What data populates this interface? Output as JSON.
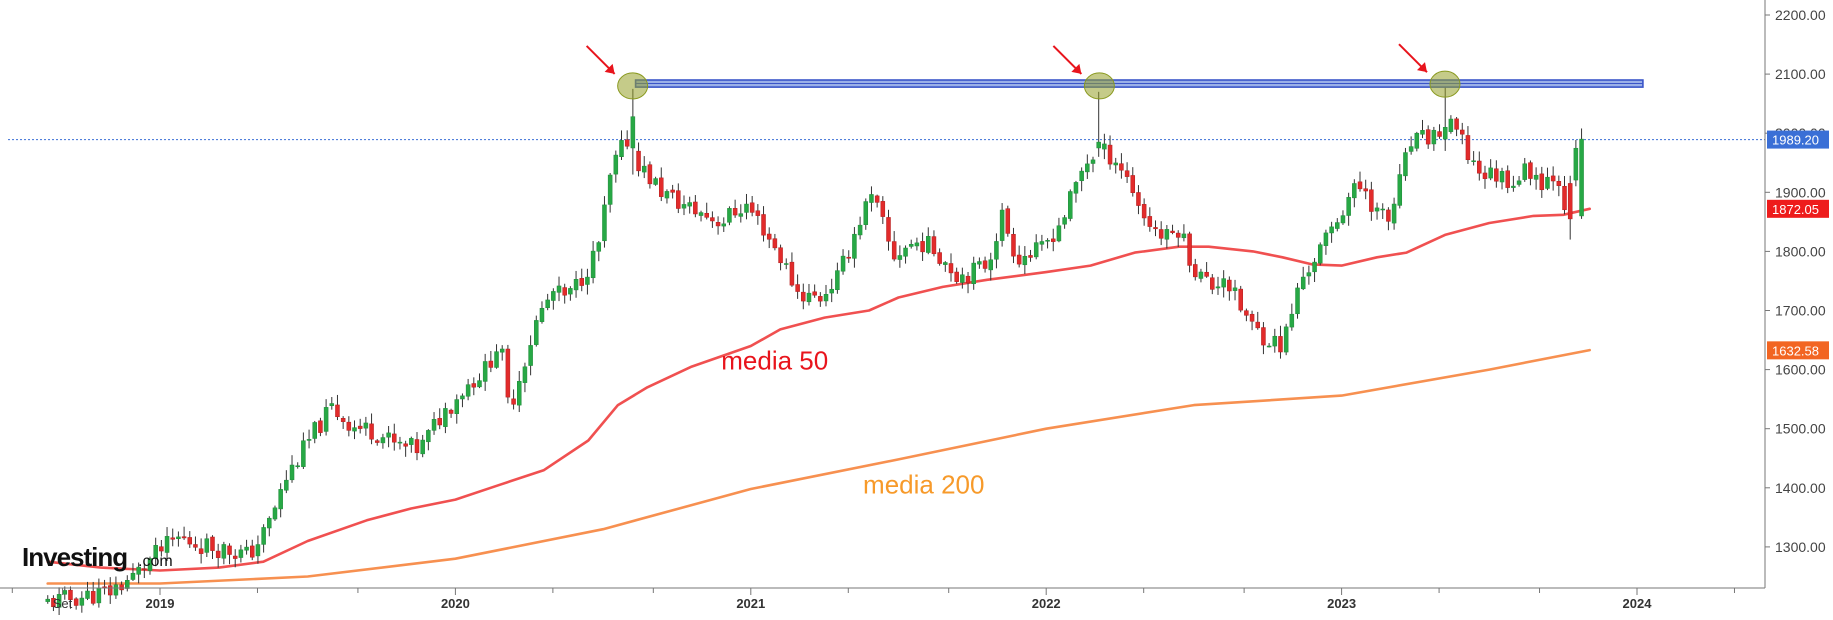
{
  "chart_data": {
    "type": "candlestick",
    "title": "",
    "xlabel": "",
    "ylabel": "",
    "ylim": [
      1235,
      2245
    ],
    "xlim": [
      2018.62,
      2024.52
    ],
    "y_ticks": [
      1300,
      1400,
      1500,
      1600,
      1700,
      1800,
      1900,
      2000,
      2100,
      2200
    ],
    "y_tick_labels": [
      "1300.00",
      "1400.00",
      "1500.00",
      "1600.00",
      "1700.00",
      "1800.00",
      "1900.00",
      "2000.00",
      "2100.00",
      "2200.00"
    ],
    "x_ticks": [
      {
        "label": "Set",
        "x": 2018.67,
        "bold": false
      },
      {
        "label": "2019",
        "x": 2019.0,
        "bold": true
      },
      {
        "label": "2020",
        "x": 2020.0,
        "bold": true
      },
      {
        "label": "2021",
        "x": 2021.0,
        "bold": true
      },
      {
        "label": "2022",
        "x": 2022.0,
        "bold": true
      },
      {
        "label": "2023",
        "x": 2023.0,
        "bold": true
      },
      {
        "label": "2024",
        "x": 2024.0,
        "bold": true
      }
    ],
    "minor_x_ticks": [
      2018.5,
      2018.67,
      2018.83,
      2019.33,
      2019.67,
      2020.33,
      2020.67,
      2021.33,
      2021.67,
      2022.33,
      2022.67,
      2023.33,
      2023.67,
      2024.33
    ],
    "price_anchors": [
      [
        2018.62,
        1205
      ],
      [
        2018.75,
        1215
      ],
      [
        2018.85,
        1225
      ],
      [
        2018.93,
        1250
      ],
      [
        2019.0,
        1285
      ],
      [
        2019.08,
        1315
      ],
      [
        2019.15,
        1305
      ],
      [
        2019.25,
        1295
      ],
      [
        2019.32,
        1285
      ],
      [
        2019.38,
        1330
      ],
      [
        2019.45,
        1420
      ],
      [
        2019.55,
        1500
      ],
      [
        2019.6,
        1535
      ],
      [
        2019.67,
        1505
      ],
      [
        2019.75,
        1495
      ],
      [
        2019.82,
        1470
      ],
      [
        2019.9,
        1465
      ],
      [
        2019.96,
        1515
      ],
      [
        2020.05,
        1570
      ],
      [
        2020.12,
        1600
      ],
      [
        2020.17,
        1650
      ],
      [
        2020.2,
        1530
      ],
      [
        2020.25,
        1610
      ],
      [
        2020.3,
        1690
      ],
      [
        2020.35,
        1730
      ],
      [
        2020.4,
        1720
      ],
      [
        2020.45,
        1760
      ],
      [
        2020.5,
        1800
      ],
      [
        2020.55,
        1940
      ],
      [
        2020.6,
        1990
      ],
      [
        2020.65,
        1940
      ],
      [
        2020.72,
        1900
      ],
      [
        2020.8,
        1875
      ],
      [
        2020.85,
        1865
      ],
      [
        2020.92,
        1850
      ],
      [
        2021.0,
        1880
      ],
      [
        2021.05,
        1850
      ],
      [
        2021.12,
        1790
      ],
      [
        2021.18,
        1730
      ],
      [
        2021.25,
        1720
      ],
      [
        2021.32,
        1760
      ],
      [
        2021.37,
        1830
      ],
      [
        2021.42,
        1890
      ],
      [
        2021.45,
        1870
      ],
      [
        2021.5,
        1790
      ],
      [
        2021.55,
        1810
      ],
      [
        2021.6,
        1815
      ],
      [
        2021.65,
        1800
      ],
      [
        2021.72,
        1760
      ],
      [
        2021.77,
        1765
      ],
      [
        2021.82,
        1780
      ],
      [
        2021.87,
        1860
      ],
      [
        2021.92,
        1790
      ],
      [
        2022.0,
        1800
      ],
      [
        2022.08,
        1860
      ],
      [
        2022.15,
        1950
      ],
      [
        2022.2,
        1970
      ],
      [
        2022.25,
        1960
      ],
      [
        2022.3,
        1920
      ],
      [
        2022.35,
        1860
      ],
      [
        2022.42,
        1820
      ],
      [
        2022.47,
        1840
      ],
      [
        2022.52,
        1770
      ],
      [
        2022.58,
        1740
      ],
      [
        2022.62,
        1760
      ],
      [
        2022.67,
        1710
      ],
      [
        2022.72,
        1670
      ],
      [
        2022.78,
        1650
      ],
      [
        2022.82,
        1640
      ],
      [
        2022.88,
        1750
      ],
      [
        2022.93,
        1790
      ],
      [
        2022.97,
        1820
      ],
      [
        2023.05,
        1900
      ],
      [
        2023.1,
        1910
      ],
      [
        2023.13,
        1870
      ],
      [
        2023.18,
        1850
      ],
      [
        2023.25,
        1980
      ],
      [
        2023.3,
        1990
      ],
      [
        2023.35,
        2000
      ],
      [
        2023.4,
        2010
      ],
      [
        2023.45,
        1960
      ],
      [
        2023.5,
        1930
      ],
      [
        2023.55,
        1930
      ],
      [
        2023.6,
        1920
      ],
      [
        2023.65,
        1940
      ],
      [
        2023.7,
        1920
      ],
      [
        2023.75,
        1935
      ],
      [
        2023.78,
        1870
      ],
      [
        2023.8,
        1930
      ],
      [
        2023.82,
        1985
      ]
    ],
    "special_candles": [
      {
        "x": 2020.6,
        "open": 1975,
        "high": 2075,
        "low": 1930,
        "close": 2028
      },
      {
        "x": 2022.18,
        "open": 1975,
        "high": 2070,
        "low": 1960,
        "close": 1985
      },
      {
        "x": 2023.35,
        "open": 1990,
        "high": 2080,
        "low": 1970,
        "close": 2010
      },
      {
        "x": 2023.78,
        "open": 1915,
        "high": 1928,
        "low": 1820,
        "close": 1855
      },
      {
        "x": 2023.82,
        "open": 1860,
        "high": 2008,
        "low": 1855,
        "close": 1990
      }
    ],
    "last_price": 1989.2,
    "series": [
      {
        "name": "media 50",
        "color": "#f05050",
        "points": [
          [
            2018.62,
            1275
          ],
          [
            2018.8,
            1265
          ],
          [
            2019.0,
            1260
          ],
          [
            2019.2,
            1265
          ],
          [
            2019.35,
            1275
          ],
          [
            2019.5,
            1310
          ],
          [
            2019.7,
            1345
          ],
          [
            2019.85,
            1365
          ],
          [
            2020.0,
            1380
          ],
          [
            2020.15,
            1405
          ],
          [
            2020.3,
            1430
          ],
          [
            2020.45,
            1480
          ],
          [
            2020.55,
            1540
          ],
          [
            2020.65,
            1570
          ],
          [
            2020.8,
            1605
          ],
          [
            2021.0,
            1640
          ],
          [
            2021.1,
            1668
          ],
          [
            2021.25,
            1688
          ],
          [
            2021.4,
            1700
          ],
          [
            2021.5,
            1722
          ],
          [
            2021.65,
            1740
          ],
          [
            2021.8,
            1752
          ],
          [
            2022.0,
            1765
          ],
          [
            2022.15,
            1776
          ],
          [
            2022.3,
            1798
          ],
          [
            2022.45,
            1808
          ],
          [
            2022.55,
            1808
          ],
          [
            2022.7,
            1800
          ],
          [
            2022.8,
            1790
          ],
          [
            2022.9,
            1778
          ],
          [
            2023.0,
            1776
          ],
          [
            2023.12,
            1790
          ],
          [
            2023.22,
            1798
          ],
          [
            2023.35,
            1828
          ],
          [
            2023.5,
            1848
          ],
          [
            2023.65,
            1860
          ],
          [
            2023.75,
            1862
          ],
          [
            2023.84,
            1872
          ]
        ]
      },
      {
        "name": "media 200",
        "color": "#f79050",
        "points": [
          [
            2018.62,
            1238
          ],
          [
            2019.0,
            1238
          ],
          [
            2019.5,
            1250
          ],
          [
            2020.0,
            1280
          ],
          [
            2020.5,
            1330
          ],
          [
            2021.0,
            1398
          ],
          [
            2021.5,
            1448
          ],
          [
            2022.0,
            1500
          ],
          [
            2022.5,
            1540
          ],
          [
            2023.0,
            1556
          ],
          [
            2023.5,
            1600
          ],
          [
            2023.84,
            1633
          ]
        ]
      }
    ],
    "y_axis_tags": [
      {
        "label": "1989.20",
        "value": 1989.2,
        "color": "#3a6fd6"
      },
      {
        "label": "1872.05",
        "value": 1872.05,
        "color": "#ee1c1c"
      },
      {
        "label": "1632.58",
        "value": 1632.58,
        "color": "#f26522"
      }
    ],
    "resistance_zone": {
      "x_start": 2020.61,
      "x_end": 2024.02,
      "y_low": 2078,
      "y_high": 2090,
      "color": "#3a55c8"
    },
    "highlighted_tops": [
      {
        "x": 2020.6,
        "y": 2080
      },
      {
        "x": 2022.18,
        "y": 2080
      },
      {
        "x": 2023.35,
        "y": 2083
      }
    ],
    "annotations": [
      {
        "text": "media 50",
        "x": 2020.9,
        "y": 1600,
        "color": "#e8141c"
      },
      {
        "text": "media 200",
        "x": 2021.38,
        "y": 1390,
        "color": "#f79a2a"
      }
    ],
    "arrow_color": "#e8141c",
    "candle_colors": {
      "up": "#27a845",
      "down": "#e22b2b",
      "wick": "#333333"
    },
    "grid": false
  },
  "watermark": {
    "main": "Investing",
    "suffix": ".com"
  }
}
